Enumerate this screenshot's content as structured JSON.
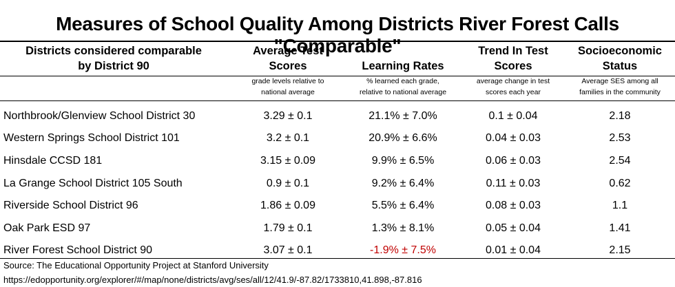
{
  "title": "Measures of School Quality Among Districts River Forest Calls \"Comparable\"",
  "headers": {
    "district_line1": "Districts considered comparable",
    "district_line2": "by District 90",
    "scores_line1": "Average Test",
    "scores_line2": "Scores",
    "scores_sub1": "grade levels relative to",
    "scores_sub2": "national average",
    "learning_line1": "Learning Rates",
    "learning_sub1": "% learned each grade,",
    "learning_sub2": "relative to national average",
    "trend_line1": "Trend In Test",
    "trend_line2": "Scores",
    "trend_sub1": "average change in test",
    "trend_sub2": "scores each year",
    "ses_line1": "Socioeconomic",
    "ses_line2": "Status",
    "ses_sub1": "Average SES among all",
    "ses_sub2": "families in the community"
  },
  "negative_color": "#c00000",
  "chart_data": {
    "type": "table",
    "title": "Measures of School Quality Among Districts River Forest Calls \"Comparable\"",
    "columns": [
      "Districts considered comparable by District 90",
      "Average Test Scores",
      "Learning Rates",
      "Trend In Test Scores",
      "Socioeconomic Status"
    ],
    "rows": [
      {
        "district": "Northbrook/Glenview School District 30",
        "scores": "3.29  ± 0.1",
        "learning": "21.1%  ± 7.0%",
        "trend": "0.1  ± 0.04",
        "ses": "2.18"
      },
      {
        "district": "Western Springs School District 101",
        "scores": "3.2  ± 0.1",
        "learning": "20.9%  ± 6.6%",
        "trend": "0.04  ± 0.03",
        "ses": "2.53"
      },
      {
        "district": "Hinsdale CCSD 181",
        "scores": "3.15  ± 0.09",
        "learning": "9.9%  ± 6.5%",
        "trend": "0.06  ± 0.03",
        "ses": "2.54"
      },
      {
        "district": "La Grange School District 105 South",
        "scores": "0.9  ± 0.1",
        "learning": "9.2%  ± 6.4%",
        "trend": "0.11  ± 0.03",
        "ses": "0.62"
      },
      {
        "district": "Riverside School District 96",
        "scores": "1.86  ± 0.09",
        "learning": "5.5%  ± 6.4%",
        "trend": "0.08  ± 0.03",
        "ses": "1.1"
      },
      {
        "district": "Oak Park ESD 97",
        "scores": "1.79  ± 0.1",
        "learning": "1.3%  ± 8.1%",
        "trend": "0.05  ± 0.04",
        "ses": "1.41"
      },
      {
        "district": "River Forest School District 90",
        "scores": "3.07  ± 0.1",
        "learning": "-1.9%  ± 7.5%",
        "trend": "0.01  ± 0.04",
        "ses": "2.15",
        "learning_negative": true
      }
    ]
  },
  "footer": {
    "source": "Source: The Educational Opportunity Project at Stanford University",
    "url": "https://edopportunity.org/explorer/#/map/none/districts/avg/ses/all/12/41.9/-87.82/1733810,41.898,-87.816"
  }
}
